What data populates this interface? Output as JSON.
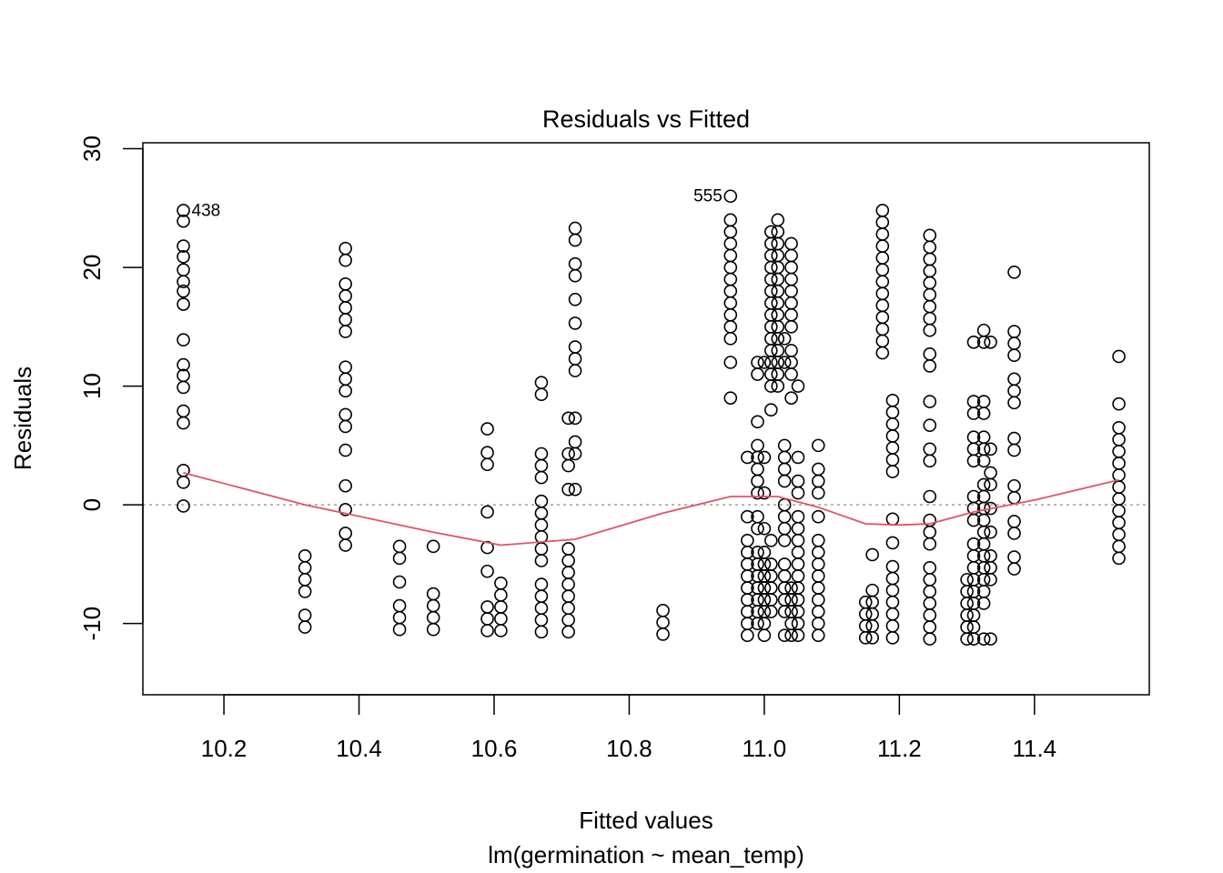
{
  "chart_data": {
    "type": "scatter",
    "title": "Residuals vs Fitted",
    "xlabel": "Fitted values",
    "subtitle": "lm(germination ~ mean_temp)",
    "ylabel": "Residuals",
    "xlim": [
      10.08,
      11.57
    ],
    "ylim": [
      -16,
      30.5
    ],
    "x_ticks": [
      "10.2",
      "10.4",
      "10.6",
      "10.8",
      "11.0",
      "11.2",
      "11.4"
    ],
    "x_tick_values": [
      10.2,
      10.4,
      10.6,
      10.8,
      11.0,
      11.2,
      11.4
    ],
    "y_ticks": [
      "-10",
      "0",
      "10",
      "20",
      "30"
    ],
    "y_tick_values": [
      -10,
      0,
      10,
      20,
      30
    ],
    "reference_line_y": 0,
    "point_groups": [
      {
        "x": 10.14,
        "y": [
          24.8,
          23.9,
          21.8,
          20.9,
          19.8,
          18.8,
          18.0,
          16.9,
          13.9,
          11.8,
          10.9,
          9.9,
          7.9,
          6.9,
          2.9,
          1.9,
          -0.1
        ]
      },
      {
        "x": 10.32,
        "y": [
          -4.3,
          -5.3,
          -6.3,
          -7.3,
          -9.3,
          -10.3
        ]
      },
      {
        "x": 10.38,
        "y": [
          21.6,
          20.6,
          18.6,
          17.6,
          16.6,
          15.6,
          14.6,
          11.6,
          10.6,
          9.6,
          7.6,
          6.6,
          4.6,
          1.6,
          -0.4,
          -2.4,
          -3.4
        ]
      },
      {
        "x": 10.46,
        "y": [
          -3.5,
          -4.5,
          -6.5,
          -8.5,
          -9.5,
          -10.5
        ]
      },
      {
        "x": 10.51,
        "y": [
          -3.5,
          -7.5,
          -8.5,
          -9.5,
          -10.5
        ]
      },
      {
        "x": 10.59,
        "y": [
          6.4,
          4.4,
          3.4,
          -0.6,
          -3.6,
          -5.6,
          -8.6,
          -9.6,
          -10.6
        ]
      },
      {
        "x": 10.61,
        "y": [
          -6.6,
          -7.6,
          -8.6,
          -9.6,
          -10.6
        ]
      },
      {
        "x": 10.67,
        "y": [
          10.3,
          9.3,
          4.3,
          3.3,
          2.3,
          0.3,
          -0.7,
          -1.7,
          -2.7,
          -3.7,
          -4.7,
          -6.7,
          -7.7,
          -8.7,
          -9.7,
          -10.7
        ]
      },
      {
        "x": 10.71,
        "y": [
          7.3,
          4.3,
          3.3,
          1.3,
          -3.7,
          -4.7,
          -5.7,
          -6.7,
          -7.7,
          -8.7,
          -9.7,
          -10.7
        ]
      },
      {
        "x": 10.72,
        "y": [
          23.3,
          22.3,
          20.3,
          19.3,
          17.3,
          15.3,
          13.3,
          12.3,
          11.3,
          7.3,
          5.3,
          4.3,
          1.3
        ]
      },
      {
        "x": 10.85,
        "y": [
          -8.9,
          -9.9,
          -10.9
        ]
      },
      {
        "x": 10.95,
        "y": [
          26.0,
          24.0,
          23.0,
          22.0,
          21.0,
          20.0,
          19.0,
          18.0,
          17.0,
          16.0,
          15.0,
          14.0,
          12.0,
          9.0
        ]
      },
      {
        "x": 10.975,
        "y": [
          4.0,
          -1.0,
          -3.0,
          -4.0,
          -5.0,
          -6.0,
          -7.0,
          -8.0,
          -9.0,
          -10.0,
          -11.0
        ]
      },
      {
        "x": 10.99,
        "y": [
          12.0,
          11.0,
          7.0,
          5.0,
          4.0,
          3.0,
          2.0,
          1.0,
          -1.0,
          -2.0,
          -4.0,
          -5.0,
          -6.0,
          -7.0,
          -8.0,
          -9.0,
          -10.0
        ]
      },
      {
        "x": 11.0,
        "y": [
          12.0,
          4.0,
          1.0,
          -2.0,
          -4.0,
          -5.0,
          -6.0,
          -7.0,
          -8.0,
          -9.0,
          -10.0,
          -11.0
        ]
      },
      {
        "x": 11.01,
        "y": [
          23.0,
          22.0,
          21.0,
          20.0,
          19.0,
          18.0,
          17.0,
          16.0,
          15.0,
          14.0,
          13.0,
          12.0,
          11.0,
          10.0,
          8.0,
          -3.0,
          -5.0,
          -6.0,
          -7.0,
          -8.0,
          -9.0
        ]
      },
      {
        "x": 11.02,
        "y": [
          24.0,
          23.0,
          22.0,
          21.0,
          20.0,
          19.0,
          18.0,
          17.0,
          16.0,
          15.0,
          14.0,
          13.0,
          12.0,
          11.0,
          10.0
        ]
      },
      {
        "x": 11.03,
        "y": [
          14.0,
          12.0,
          5.0,
          4.0,
          3.0,
          2.0,
          0.0,
          -1.0,
          -2.0,
          -3.0,
          -5.0,
          -6.0,
          -7.0,
          -8.0,
          -9.0,
          -11.0
        ]
      },
      {
        "x": 11.04,
        "y": [
          22.0,
          21.0,
          20.0,
          19.0,
          18.0,
          17.0,
          16.0,
          15.0,
          13.0,
          12.0,
          11.0,
          9.0,
          -7.0,
          -8.0,
          -9.0,
          -10.0,
          -11.0
        ]
      },
      {
        "x": 11.05,
        "y": [
          10.0,
          4.0,
          2.0,
          1.0,
          -1.0,
          -2.0,
          -3.0,
          -4.0,
          -5.0,
          -6.0,
          -7.0,
          -8.0,
          -9.0,
          -10.0,
          -11.0
        ]
      },
      {
        "x": 11.08,
        "y": [
          5.0,
          3.0,
          2.0,
          1.0,
          -1.0,
          -3.0,
          -4.0,
          -5.0,
          -6.0,
          -7.0,
          -8.0,
          -9.0,
          -10.0,
          -11.0
        ]
      },
      {
        "x": 11.15,
        "y": [
          -8.2,
          -9.2,
          -10.2,
          -11.2
        ]
      },
      {
        "x": 11.16,
        "y": [
          -4.2,
          -7.2,
          -8.2,
          -9.2,
          -10.2,
          -11.2
        ]
      },
      {
        "x": 11.175,
        "y": [
          24.8,
          23.8,
          22.8,
          21.8,
          20.8,
          19.8,
          18.8,
          17.8,
          16.8,
          15.8,
          14.8,
          13.8,
          12.8
        ]
      },
      {
        "x": 11.19,
        "y": [
          8.8,
          7.8,
          6.8,
          5.8,
          4.8,
          3.8,
          2.8,
          -1.2,
          -3.2,
          -5.2,
          -6.2,
          -7.2,
          -8.2,
          -9.2,
          -10.2,
          -11.2
        ]
      },
      {
        "x": 11.245,
        "y": [
          22.7,
          21.7,
          20.7,
          19.7,
          18.7,
          17.7,
          16.7,
          15.7,
          14.7,
          12.7,
          11.7,
          8.7,
          6.7,
          4.7,
          3.7,
          0.7,
          -1.3,
          -2.3,
          -3.3,
          -5.3,
          -6.3,
          -7.3,
          -8.3,
          -9.3,
          -10.3,
          -11.3
        ]
      },
      {
        "x": 11.3,
        "y": [
          -6.3,
          -7.3,
          -8.3,
          -9.3,
          -10.3,
          -11.3
        ]
      },
      {
        "x": 11.31,
        "y": [
          13.7,
          8.7,
          7.7,
          5.7,
          4.7,
          3.7,
          0.7,
          -0.3,
          -1.3,
          -3.3,
          -4.3,
          -5.3,
          -6.3,
          -7.3,
          -8.3,
          -9.3,
          -10.3,
          -11.3
        ]
      },
      {
        "x": 11.325,
        "y": [
          14.7,
          13.7,
          8.7,
          7.7,
          5.7,
          4.7,
          3.7,
          1.7,
          0.7,
          -0.3,
          -1.3,
          -2.3,
          -3.3,
          -4.3,
          -5.3,
          -6.3,
          -7.3,
          -8.3,
          -11.3
        ]
      },
      {
        "x": 11.335,
        "y": [
          13.7,
          4.7,
          2.7,
          1.7,
          -0.3,
          -2.3,
          -4.3,
          -5.3,
          -6.3,
          -11.3
        ]
      },
      {
        "x": 11.37,
        "y": [
          19.6,
          14.6,
          13.6,
          12.6,
          10.6,
          9.6,
          8.6,
          5.6,
          4.6,
          1.6,
          0.6,
          -1.4,
          -2.4,
          -4.4,
          -5.4
        ]
      },
      {
        "x": 11.525,
        "y": [
          12.5,
          8.5,
          6.5,
          5.5,
          4.5,
          3.5,
          2.5,
          1.5,
          0.5,
          -0.5,
          -1.5,
          -2.5,
          -3.5,
          -4.5
        ]
      }
    ],
    "smooth_line": {
      "color": "#DF536B",
      "x": [
        10.14,
        10.32,
        10.51,
        10.61,
        10.72,
        10.85,
        10.95,
        11.02,
        11.08,
        11.15,
        11.2,
        11.245,
        11.31,
        11.4,
        11.525
      ],
      "y": [
        2.7,
        0.0,
        -2.3,
        -3.4,
        -2.9,
        -0.7,
        0.7,
        0.7,
        -0.2,
        -1.6,
        -1.7,
        -1.6,
        -0.6,
        0.4,
        2.1
      ]
    },
    "point_labels": [
      {
        "text": "438",
        "x": 10.14,
        "y": 24.8,
        "side": "right"
      },
      {
        "text": "555",
        "x": 10.95,
        "y": 26.0,
        "side": "left"
      }
    ]
  }
}
